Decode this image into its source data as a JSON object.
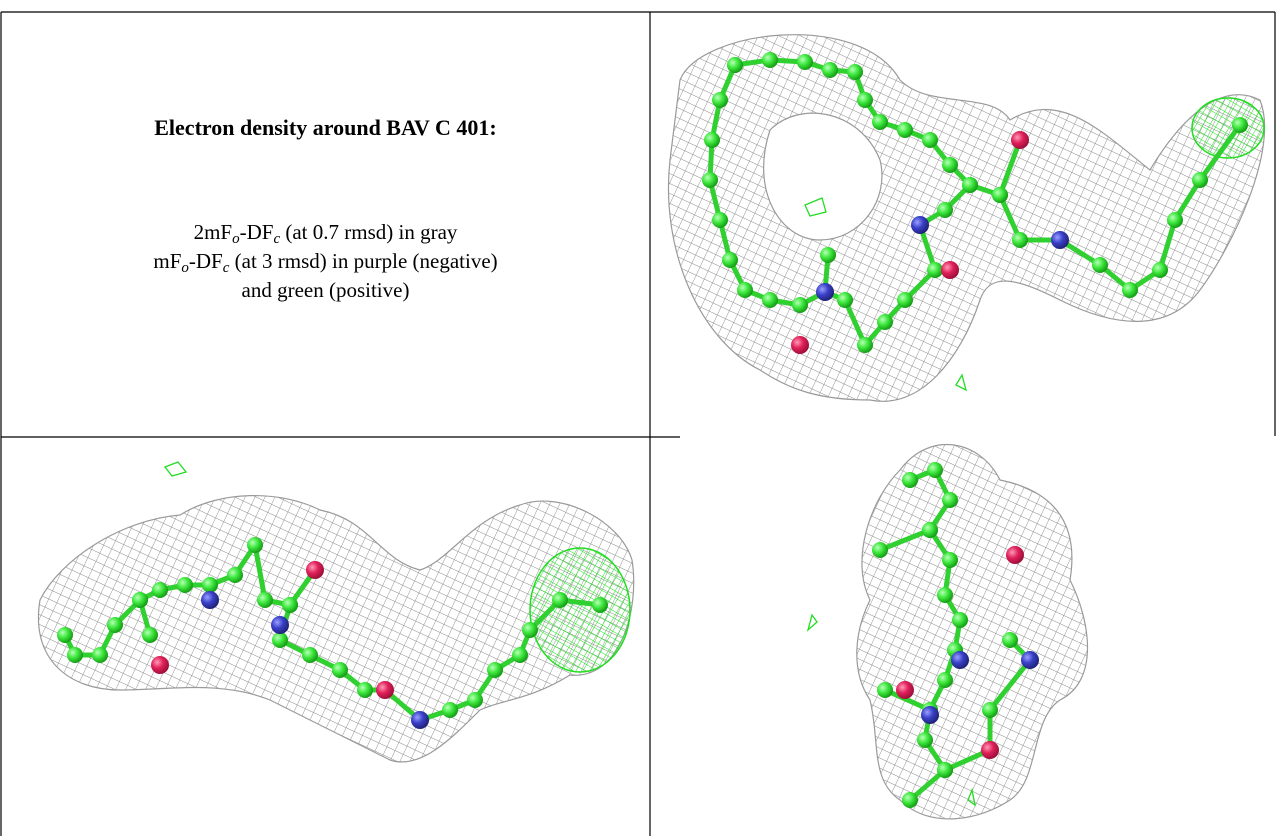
{
  "caption": {
    "title": "Electron density around BAV C 401:",
    "lines": [
      [
        "2mF",
        "o",
        "-DF",
        "c",
        " (at 0.7 rmsd) in gray"
      ],
      [
        "mF",
        "o",
        "-DF",
        "c",
        " (at 3 rmsd) in purple (negative)"
      ],
      [
        "and green (positive)"
      ]
    ]
  }
}
